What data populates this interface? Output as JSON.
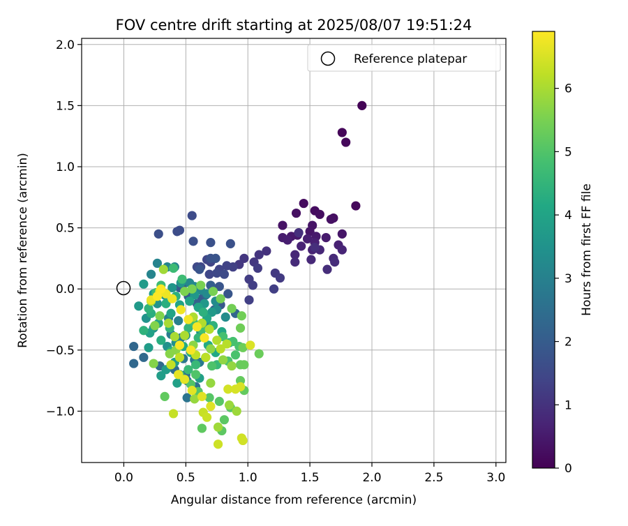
{
  "chart_data": {
    "type": "scatter",
    "title": "FOV centre drift starting at 2025/08/07 19:51:24",
    "xlabel": "Angular distance from reference (arcmin)",
    "ylabel": "Rotation from reference (arcmin)",
    "xlim": [
      -0.34,
      3.08
    ],
    "ylim": [
      -1.42,
      2.05
    ],
    "xticks": [
      "0.0",
      "0.5",
      "1.0",
      "1.5",
      "2.0",
      "2.5",
      "3.0"
    ],
    "xtick_values": [
      0.0,
      0.5,
      1.0,
      1.5,
      2.0,
      2.5,
      3.0
    ],
    "yticks": [
      "−1.0",
      "−0.5",
      "0.0",
      "0.5",
      "1.0",
      "1.5",
      "2.0"
    ],
    "ytick_values": [
      -1.0,
      -0.5,
      0.0,
      0.5,
      1.0,
      1.5,
      2.0
    ],
    "grid": true,
    "legend": {
      "placement": "top-right",
      "entries": [
        "Reference platepar"
      ]
    },
    "reference_point": {
      "x": 0.0,
      "y": 0.0
    },
    "colorbar": {
      "label": "Hours from first FF file",
      "colormap": "viridis",
      "range": [
        0,
        6.9
      ],
      "ticks": [
        "0",
        "1",
        "2",
        "3",
        "4",
        "5",
        "6"
      ],
      "tick_values": [
        0,
        1,
        2,
        3,
        4,
        5,
        6
      ]
    },
    "points": [
      [
        1.92,
        1.5,
        0.05
      ],
      [
        1.76,
        1.28,
        0.1
      ],
      [
        1.79,
        1.2,
        0.12
      ],
      [
        1.87,
        0.68,
        0.15
      ],
      [
        1.45,
        0.7,
        0.2
      ],
      [
        1.54,
        0.64,
        0.22
      ],
      [
        1.58,
        0.61,
        0.25
      ],
      [
        1.69,
        0.58,
        0.28
      ],
      [
        1.39,
        0.62,
        0.3
      ],
      [
        1.67,
        0.57,
        0.32
      ],
      [
        1.28,
        0.52,
        0.35
      ],
      [
        1.52,
        0.52,
        0.38
      ],
      [
        1.5,
        0.47,
        0.4
      ],
      [
        1.76,
        0.45,
        0.42
      ],
      [
        1.4,
        0.44,
        0.45
      ],
      [
        1.35,
        0.43,
        0.48
      ],
      [
        1.55,
        0.43,
        0.5
      ],
      [
        1.63,
        0.42,
        0.52
      ],
      [
        1.28,
        0.42,
        0.55
      ],
      [
        1.32,
        0.4,
        0.58
      ],
      [
        1.48,
        0.41,
        0.6
      ],
      [
        1.54,
        0.38,
        0.62
      ],
      [
        1.73,
        0.36,
        0.65
      ],
      [
        1.43,
        0.35,
        0.68
      ],
      [
        1.52,
        0.32,
        0.7
      ],
      [
        1.76,
        0.32,
        0.72
      ],
      [
        1.58,
        0.32,
        0.75
      ],
      [
        1.38,
        0.28,
        0.78
      ],
      [
        1.51,
        0.24,
        0.8
      ],
      [
        1.69,
        0.25,
        0.82
      ],
      [
        1.38,
        0.22,
        0.85
      ],
      [
        1.7,
        0.22,
        0.88
      ],
      [
        1.64,
        0.16,
        0.9
      ],
      [
        1.54,
        0.34,
        0.92
      ],
      [
        1.41,
        0.46,
        0.95
      ],
      [
        1.15,
        0.31,
        1.0
      ],
      [
        1.09,
        0.28,
        1.05
      ],
      [
        0.97,
        0.25,
        1.08
      ],
      [
        1.05,
        0.22,
        1.1
      ],
      [
        0.93,
        0.2,
        1.12
      ],
      [
        1.22,
        0.13,
        1.15
      ],
      [
        1.26,
        0.09,
        1.18
      ],
      [
        1.08,
        0.17,
        1.2
      ],
      [
        1.01,
        0.08,
        1.22
      ],
      [
        1.04,
        0.03,
        1.25
      ],
      [
        1.21,
        0.0,
        1.28
      ],
      [
        1.01,
        -0.09,
        1.3
      ],
      [
        0.88,
        0.18,
        1.32
      ],
      [
        0.83,
        0.19,
        1.35
      ],
      [
        0.77,
        0.16,
        1.38
      ],
      [
        0.7,
        0.22,
        1.4
      ],
      [
        0.67,
        0.24,
        1.42
      ],
      [
        0.69,
        0.12,
        1.45
      ],
      [
        0.62,
        0.18,
        1.48
      ],
      [
        0.59,
        0.18,
        1.5
      ],
      [
        0.75,
        0.13,
        1.52
      ],
      [
        0.81,
        0.12,
        1.55
      ],
      [
        0.55,
        0.6,
        1.58
      ],
      [
        0.45,
        0.48,
        1.6
      ],
      [
        0.43,
        0.47,
        1.62
      ],
      [
        0.28,
        0.45,
        1.65
      ],
      [
        0.56,
        0.39,
        1.68
      ],
      [
        0.7,
        0.38,
        1.7
      ],
      [
        0.86,
        0.37,
        1.72
      ],
      [
        0.7,
        0.25,
        1.75
      ],
      [
        0.74,
        0.25,
        1.78
      ],
      [
        0.61,
        0.16,
        1.8
      ],
      [
        0.77,
        0.02,
        1.82
      ],
      [
        0.84,
        -0.04,
        1.85
      ],
      [
        0.78,
        -0.13,
        1.88
      ],
      [
        0.63,
        -0.08,
        1.9
      ],
      [
        0.55,
        -0.02,
        1.92
      ],
      [
        0.48,
        0.04,
        1.95
      ],
      [
        0.45,
        0.01,
        1.98
      ],
      [
        0.52,
        -0.06,
        2.0
      ],
      [
        0.7,
        0.03,
        2.05
      ],
      [
        0.66,
        -0.05,
        2.1
      ],
      [
        0.59,
        -0.12,
        2.15
      ],
      [
        0.73,
        -0.17,
        2.2
      ],
      [
        0.9,
        -0.2,
        2.25
      ],
      [
        0.08,
        -0.47,
        2.3
      ],
      [
        0.08,
        -0.61,
        2.32
      ],
      [
        0.16,
        -0.56,
        2.35
      ],
      [
        0.29,
        -0.63,
        2.4
      ],
      [
        0.41,
        -0.66,
        2.45
      ],
      [
        0.5,
        -0.7,
        2.5
      ],
      [
        0.51,
        -0.75,
        2.55
      ],
      [
        0.58,
        -0.8,
        2.6
      ],
      [
        0.51,
        -0.89,
        2.65
      ],
      [
        0.48,
        -0.57,
        2.7
      ],
      [
        0.57,
        -0.58,
        2.75
      ],
      [
        0.61,
        -0.6,
        2.8
      ],
      [
        0.46,
        -0.4,
        2.85
      ],
      [
        0.38,
        -0.37,
        2.9
      ],
      [
        0.44,
        -0.26,
        2.95
      ],
      [
        0.36,
        -0.24,
        3.0
      ],
      [
        0.27,
        0.21,
        3.05
      ],
      [
        0.22,
        0.12,
        3.1
      ],
      [
        0.35,
        0.18,
        3.12
      ],
      [
        0.41,
        0.18,
        3.15
      ],
      [
        0.53,
        0.05,
        3.18
      ],
      [
        0.57,
        0.02,
        3.2
      ],
      [
        0.62,
        -0.01,
        3.22
      ],
      [
        0.67,
        -0.04,
        3.25
      ],
      [
        0.74,
        -0.1,
        3.28
      ],
      [
        0.75,
        -0.17,
        3.3
      ],
      [
        0.82,
        -0.23,
        3.32
      ],
      [
        0.69,
        -0.3,
        3.35
      ],
      [
        0.62,
        -0.35,
        3.38
      ],
      [
        0.5,
        -0.38,
        3.4
      ],
      [
        0.42,
        -0.44,
        3.42
      ],
      [
        0.35,
        -0.47,
        3.45
      ],
      [
        0.24,
        -0.32,
        3.48
      ],
      [
        0.18,
        -0.24,
        3.5
      ],
      [
        0.27,
        -0.12,
        3.52
      ],
      [
        0.33,
        -0.05,
        3.55
      ],
      [
        0.39,
        0.01,
        3.58
      ],
      [
        0.46,
        0.05,
        3.6
      ],
      [
        0.57,
        -0.05,
        3.62
      ],
      [
        0.65,
        -0.12,
        3.65
      ],
      [
        0.71,
        -0.19,
        3.68
      ],
      [
        0.12,
        -0.14,
        3.7
      ],
      [
        0.16,
        0.04,
        3.72
      ],
      [
        0.24,
        -0.04,
        3.75
      ],
      [
        0.2,
        -0.48,
        3.78
      ],
      [
        0.3,
        -0.71,
        3.8
      ],
      [
        0.34,
        -0.66,
        3.82
      ],
      [
        0.41,
        -0.6,
        3.85
      ],
      [
        0.61,
        -0.73,
        3.88
      ],
      [
        0.43,
        -0.77,
        3.9
      ],
      [
        0.21,
        -0.36,
        3.92
      ],
      [
        0.28,
        -0.28,
        3.95
      ],
      [
        0.38,
        -0.2,
        3.98
      ],
      [
        0.45,
        -0.13,
        4.0
      ],
      [
        0.53,
        -0.1,
        4.02
      ],
      [
        0.6,
        -0.15,
        4.05
      ],
      [
        0.67,
        -0.24,
        4.08
      ],
      [
        0.79,
        -0.35,
        4.1
      ],
      [
        0.85,
        -0.44,
        4.12
      ],
      [
        0.74,
        -0.52,
        4.15
      ],
      [
        0.68,
        -0.46,
        4.18
      ],
      [
        0.54,
        -0.52,
        4.2
      ],
      [
        0.48,
        -0.47,
        4.22
      ],
      [
        0.38,
        -0.51,
        4.25
      ],
      [
        0.3,
        -0.42,
        4.28
      ],
      [
        0.22,
        -0.2,
        4.3
      ],
      [
        0.34,
        -0.12,
        4.32
      ],
      [
        0.42,
        -0.06,
        4.35
      ],
      [
        0.64,
        -0.19,
        4.38
      ],
      [
        0.72,
        -0.3,
        4.4
      ],
      [
        0.16,
        -0.34,
        4.42
      ],
      [
        0.2,
        -0.16,
        4.45
      ],
      [
        0.37,
        -0.32,
        4.48
      ],
      [
        0.52,
        -0.32,
        4.5
      ],
      [
        0.6,
        -0.4,
        4.52
      ],
      [
        0.66,
        -0.56,
        4.55
      ],
      [
        0.75,
        -0.62,
        4.58
      ],
      [
        0.58,
        -0.62,
        4.6
      ],
      [
        0.52,
        -0.66,
        4.62
      ],
      [
        0.45,
        -0.7,
        4.65
      ],
      [
        0.4,
        0.17,
        4.68
      ],
      [
        0.47,
        0.08,
        4.7
      ],
      [
        0.3,
        0.03,
        4.72
      ],
      [
        0.26,
        -0.03,
        4.75
      ],
      [
        0.56,
        -0.27,
        4.78
      ],
      [
        0.63,
        -0.33,
        4.8
      ],
      [
        0.8,
        -0.39,
        4.82
      ],
      [
        0.88,
        -0.43,
        4.85
      ],
      [
        0.93,
        -0.47,
        4.88
      ],
      [
        0.9,
        -0.54,
        4.9
      ],
      [
        0.84,
        -0.59,
        4.92
      ],
      [
        0.71,
        -0.63,
        4.95
      ],
      [
        0.58,
        -0.7,
        4.98
      ],
      [
        0.54,
        -0.78,
        5.0
      ],
      [
        0.6,
        -0.84,
        5.02
      ],
      [
        0.69,
        -0.89,
        5.05
      ],
      [
        0.77,
        -0.92,
        5.08
      ],
      [
        0.86,
        -0.97,
        5.1
      ],
      [
        0.81,
        -1.07,
        5.12
      ],
      [
        0.79,
        -1.16,
        5.15
      ],
      [
        0.63,
        -1.14,
        5.18
      ],
      [
        0.33,
        -0.88,
        5.2
      ],
      [
        0.97,
        -0.83,
        5.22
      ],
      [
        0.94,
        -0.75,
        5.25
      ],
      [
        0.94,
        -0.62,
        5.28
      ],
      [
        0.97,
        -0.62,
        5.3
      ],
      [
        1.09,
        -0.53,
        5.32
      ],
      [
        0.96,
        -0.48,
        5.35
      ],
      [
        0.94,
        -0.32,
        5.38
      ],
      [
        0.95,
        -0.22,
        5.4
      ],
      [
        0.87,
        -0.16,
        5.42
      ],
      [
        0.78,
        -0.08,
        5.45
      ],
      [
        0.72,
        -0.02,
        5.48
      ],
      [
        0.62,
        0.03,
        5.5
      ],
      [
        0.55,
        0.0,
        5.52
      ],
      [
        0.49,
        -0.02,
        5.55
      ],
      [
        0.29,
        -0.22,
        5.58
      ],
      [
        0.25,
        -0.3,
        5.6
      ],
      [
        0.24,
        -0.61,
        5.62
      ],
      [
        0.37,
        -0.53,
        5.65
      ],
      [
        0.42,
        -0.5,
        5.68
      ],
      [
        0.56,
        -0.46,
        5.7
      ],
      [
        0.7,
        -0.49,
        5.72
      ],
      [
        0.8,
        -0.58,
        5.75
      ],
      [
        0.87,
        -0.63,
        5.78
      ],
      [
        0.7,
        -0.77,
        5.8
      ],
      [
        0.57,
        -0.9,
        5.82
      ],
      [
        0.85,
        -0.95,
        5.85
      ],
      [
        0.91,
        -1.0,
        5.88
      ],
      [
        0.76,
        -1.13,
        5.9
      ],
      [
        0.32,
        0.16,
        5.92
      ],
      [
        0.22,
        -0.1,
        5.95
      ],
      [
        0.36,
        -0.28,
        5.98
      ],
      [
        0.41,
        -0.39,
        6.0
      ],
      [
        0.49,
        -0.38,
        6.02
      ],
      [
        0.56,
        -0.23,
        6.05
      ],
      [
        0.63,
        -0.28,
        6.08
      ],
      [
        0.69,
        -0.33,
        6.1
      ],
      [
        0.75,
        -0.42,
        6.12
      ],
      [
        0.83,
        -0.45,
        6.15
      ],
      [
        0.78,
        -0.49,
        6.18
      ],
      [
        0.66,
        -0.56,
        6.2
      ],
      [
        0.58,
        -0.54,
        6.22
      ],
      [
        0.45,
        -0.56,
        6.25
      ],
      [
        0.38,
        -0.62,
        6.28
      ],
      [
        0.4,
        -1.02,
        6.3
      ],
      [
        0.64,
        -1.01,
        6.32
      ],
      [
        0.67,
        -1.05,
        6.35
      ],
      [
        0.76,
        -1.27,
        6.38
      ],
      [
        0.95,
        -1.22,
        6.4
      ],
      [
        0.96,
        -1.24,
        6.42
      ],
      [
        0.84,
        -0.82,
        6.45
      ],
      [
        0.9,
        -0.82,
        6.48
      ],
      [
        0.94,
        -0.8,
        6.5
      ],
      [
        1.02,
        -0.46,
        6.52
      ],
      [
        0.7,
        -0.96,
        6.55
      ],
      [
        0.63,
        -0.88,
        6.58
      ],
      [
        0.55,
        -0.83,
        6.6
      ],
      [
        0.49,
        -0.74,
        6.62
      ],
      [
        0.44,
        -0.7,
        6.65
      ],
      [
        0.22,
        -0.09,
        6.68
      ],
      [
        0.29,
        -0.02,
        6.7
      ],
      [
        0.34,
        -0.04,
        6.72
      ],
      [
        0.39,
        -0.08,
        6.74
      ],
      [
        0.46,
        -0.17,
        6.76
      ],
      [
        0.52,
        -0.25,
        6.78
      ],
      [
        0.59,
        -0.31,
        6.8
      ],
      [
        0.65,
        -0.4,
        6.82
      ],
      [
        0.54,
        -0.5,
        6.84
      ],
      [
        0.45,
        -0.46,
        6.86
      ],
      [
        0.3,
        0.0,
        6.88
      ],
      [
        0.27,
        -0.06,
        6.89
      ]
    ]
  }
}
